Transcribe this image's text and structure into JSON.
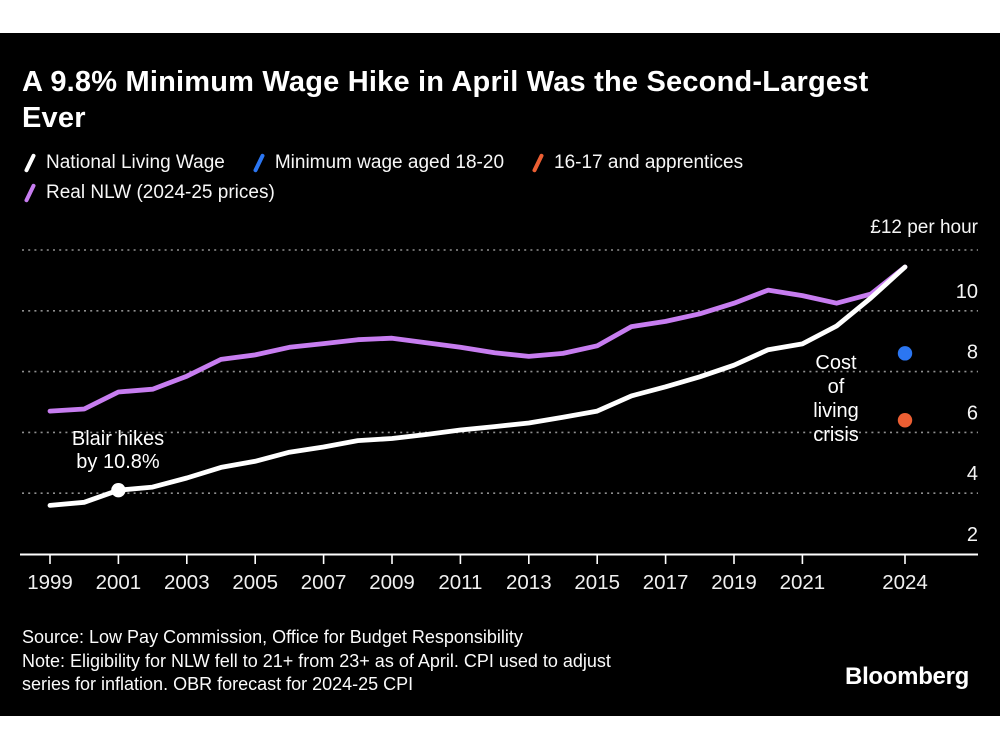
{
  "header": {
    "title": "A 9.8% Minimum Wage Hike in April Was the Second-Largest Ever",
    "title_lines": [
      "A 9.8% Minimum Wage Hike in April Was the Second-Largest",
      "Ever"
    ]
  },
  "legend": [
    {
      "label": "National Living Wage",
      "color": "#ffffff"
    },
    {
      "label": "Minimum wage aged 18-20",
      "color": "#2b76f2"
    },
    {
      "label": "16-17 and apprentices",
      "color": "#ec5f33"
    },
    {
      "label": "Real NLW (2024-25 prices)",
      "color": "#c77df0"
    }
  ],
  "chart_data": {
    "type": "line",
    "title": "A 9.8% Minimum Wage Hike in April Was the Second-Largest Ever",
    "xlabel": "",
    "ylabel": "£ per hour",
    "y_axis_top_label": "£12 per hour",
    "ylim": [
      2,
      12.4
    ],
    "grid": "horizontal-dotted",
    "grid_values": [
      4,
      6,
      8,
      10,
      12
    ],
    "y_tick_labels": [
      2,
      4,
      6,
      8,
      10
    ],
    "x_ticks": [
      1999,
      2001,
      2003,
      2005,
      2007,
      2009,
      2011,
      2013,
      2015,
      2017,
      2019,
      2021,
      2024
    ],
    "x": [
      1999,
      2000,
      2001,
      2002,
      2003,
      2004,
      2005,
      2006,
      2007,
      2008,
      2009,
      2010,
      2011,
      2012,
      2013,
      2014,
      2015,
      2016,
      2017,
      2018,
      2019,
      2020,
      2021,
      2022,
      2023,
      2024
    ],
    "series": [
      {
        "name": "National Living Wage",
        "color": "#ffffff",
        "values": [
          3.6,
          3.7,
          4.1,
          4.2,
          4.5,
          4.85,
          5.05,
          5.35,
          5.52,
          5.73,
          5.8,
          5.93,
          6.08,
          6.19,
          6.31,
          6.5,
          6.7,
          7.2,
          7.5,
          7.83,
          8.21,
          8.72,
          8.91,
          9.5,
          10.42,
          11.44
        ]
      },
      {
        "name": "Real NLW (2024-25 prices)",
        "color": "#c77df0",
        "values": [
          6.7,
          6.77,
          7.33,
          7.42,
          7.85,
          8.4,
          8.55,
          8.8,
          8.92,
          9.05,
          9.1,
          8.95,
          8.8,
          8.62,
          8.5,
          8.6,
          8.85,
          9.48,
          9.65,
          9.9,
          10.25,
          10.68,
          10.5,
          10.25,
          10.55,
          11.44
        ]
      }
    ],
    "points": [
      {
        "name": "Minimum wage aged 18-20",
        "color": "#2b76f2",
        "x": 2024,
        "value": 8.6
      },
      {
        "name": "16-17 and apprentices",
        "color": "#ec5f33",
        "x": 2024,
        "value": 6.4
      },
      {
        "name": "Blair hike marker",
        "color": "#ffffff",
        "x": 2001,
        "value": 4.1
      }
    ],
    "annotations": [
      {
        "id": "blair",
        "lines": [
          "Blair hikes",
          "by 10.8%"
        ]
      },
      {
        "id": "cost-of-living",
        "lines": [
          "Cost",
          "of",
          "living",
          "crisis"
        ]
      }
    ],
    "legend_position": "top"
  },
  "footer": {
    "source": "Source: Low Pay Commission, Office for Budget Responsibility",
    "note_line1": "Note: Eligibility for NLW fell to 21+ from 23+ as of April. CPI used to adjust",
    "note_line2": "series for inflation. OBR forecast for 2024-25 CPI",
    "logo": "Bloomberg"
  }
}
